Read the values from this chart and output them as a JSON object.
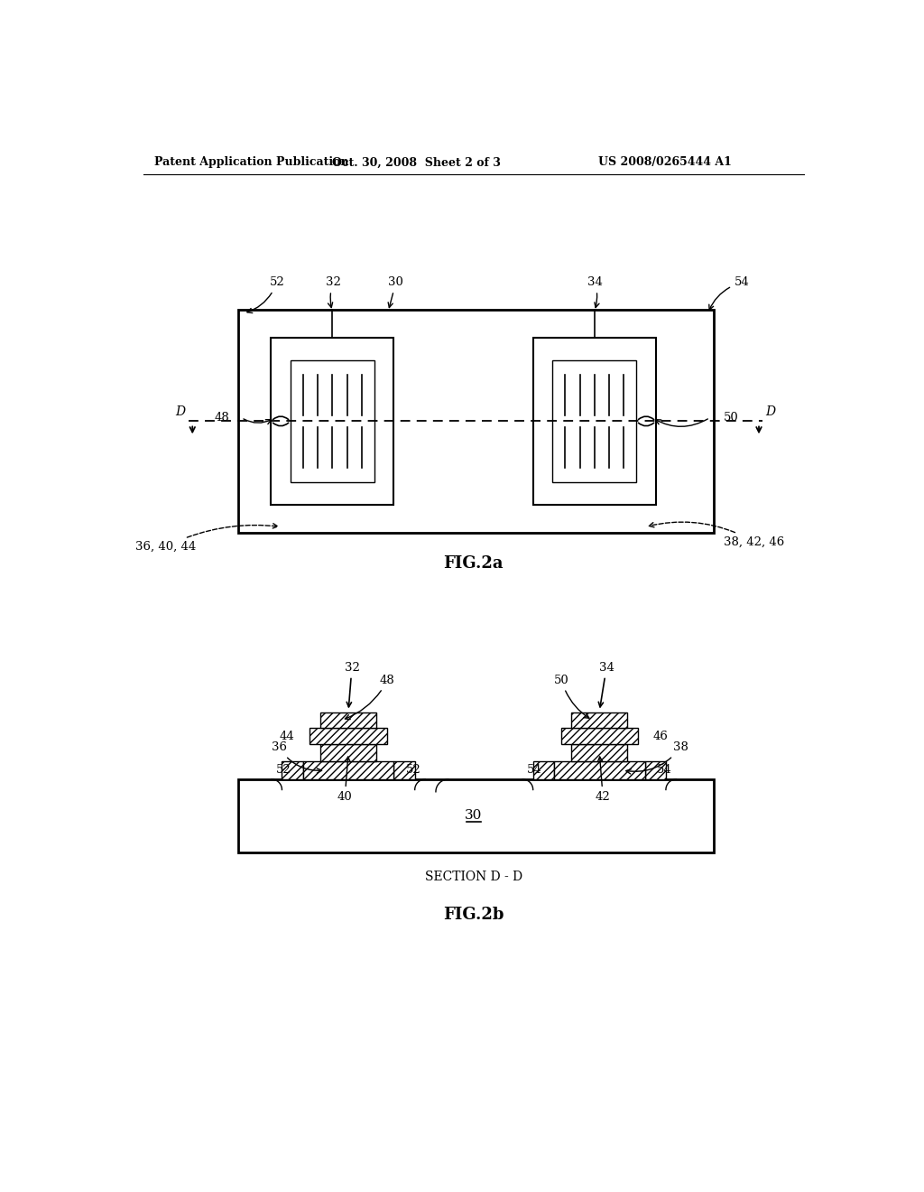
{
  "header_left": "Patent Application Publication",
  "header_center": "Oct. 30, 2008  Sheet 2 of 3",
  "header_right": "US 2008/0265444 A1",
  "fig2a_label": "FIG.2a",
  "fig2b_label": "FIG.2b",
  "section_label": "SECTION D - D",
  "bg_color": "#ffffff",
  "line_color": "#000000"
}
